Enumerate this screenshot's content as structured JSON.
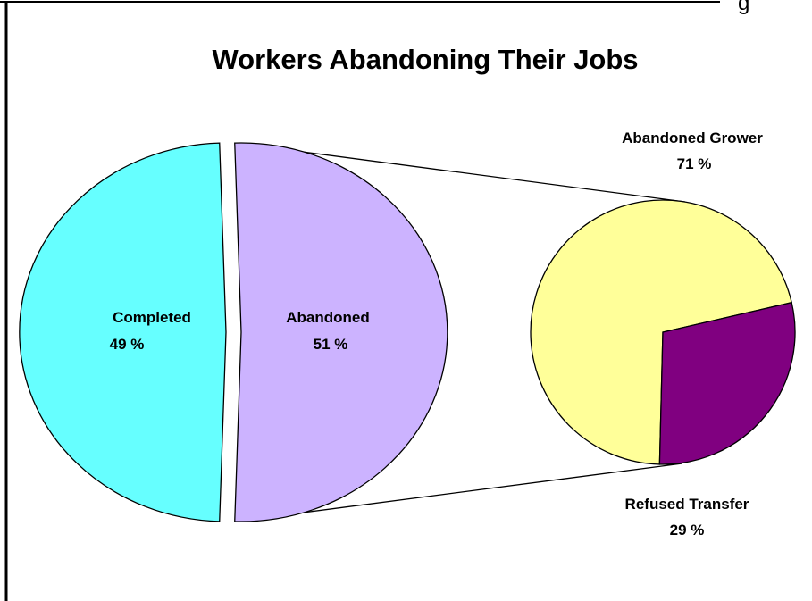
{
  "chart_data": {
    "type": "pie",
    "subtype": "pie-of-pie",
    "title": "Workers Abandoning Their Jobs",
    "main_pie": {
      "slices": [
        {
          "label": "Completed",
          "value": 49,
          "value_text": "49 %",
          "color": "#66FFFF"
        },
        {
          "label": "Abandoned",
          "value": 51,
          "value_text": "51 %",
          "color": "#CCB3FF",
          "exploded": true
        }
      ]
    },
    "secondary_pie": {
      "breakdown_of": "Abandoned",
      "slices": [
        {
          "label": "Abandoned Grower",
          "value": 71,
          "value_text": "71 %",
          "color": "#FFFF99"
        },
        {
          "label": "Refused Transfer",
          "value": 29,
          "value_text": "29 %",
          "color": "#800080"
        }
      ]
    },
    "legend": "none",
    "grid": false
  },
  "page": {
    "corner_fragment": "g"
  }
}
